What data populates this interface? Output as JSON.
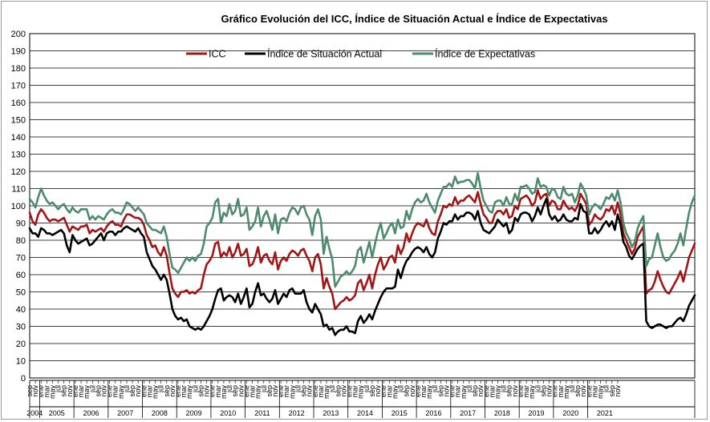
{
  "chart_data": {
    "type": "line",
    "title": "Gráfico Evolución del ICC, Índice de Situación Actual e Índice de Expectativas",
    "xlabel": "",
    "ylabel": "",
    "ylim": [
      0,
      200
    ],
    "ytick_step": 10,
    "grid": true,
    "legend_position": "top-center",
    "month_tick_labels": [
      "sep",
      "nov",
      "ene",
      "mar",
      "may",
      "jul",
      "sep",
      "nov"
    ],
    "month_tick_labels_end": [
      "sep",
      "nov",
      "ene",
      "mar"
    ],
    "year_labels": [
      "2004",
      "2005",
      "2006",
      "2007",
      "2008",
      "2009",
      "2010",
      "2011",
      "2012",
      "2013",
      "2014",
      "2015",
      "2016",
      "2017",
      "2018",
      "2019",
      "2020",
      "2021"
    ],
    "x_range": [
      "2004-09",
      "2021-04"
    ],
    "series": [
      {
        "name": "ICC",
        "color": "#a31515",
        "values": [
          96,
          91,
          89,
          95,
          98,
          96,
          93,
          91,
          92,
          92,
          91,
          92,
          93,
          89,
          85,
          88,
          87,
          86,
          88,
          88,
          89,
          84,
          86,
          85,
          86,
          87,
          85,
          88,
          90,
          91,
          89,
          89,
          88,
          92,
          95,
          95,
          94,
          93,
          93,
          92,
          89,
          83,
          80,
          76,
          77,
          73,
          71,
          76,
          71,
          61,
          52,
          49,
          47,
          50,
          50,
          51,
          49,
          50,
          49,
          51,
          52,
          60,
          66,
          68,
          71,
          78,
          79,
          70,
          73,
          71,
          76,
          70,
          73,
          78,
          71,
          72,
          75,
          65,
          66,
          70,
          76,
          67,
          71,
          72,
          68,
          66,
          73,
          63,
          68,
          70,
          68,
          72,
          74,
          73,
          71,
          74,
          75,
          71,
          68,
          62,
          70,
          72,
          66,
          52,
          58,
          53,
          49,
          40,
          42,
          44,
          45,
          47,
          45,
          46,
          48,
          55,
          57,
          51,
          55,
          60,
          52,
          60,
          66,
          70,
          63,
          66,
          70,
          71,
          67,
          77,
          72,
          76,
          84,
          79,
          84,
          88,
          90,
          89,
          88,
          92,
          87,
          84,
          83,
          91,
          95,
          100,
          99,
          101,
          100,
          105,
          101,
          103,
          103,
          105,
          106,
          104,
          102,
          108,
          101,
          95,
          93,
          90,
          90,
          95,
          97,
          97,
          95,
          98,
          93,
          94,
          100,
          98,
          104,
          105,
          106,
          104,
          100,
          102,
          109,
          104,
          106,
          107,
          100,
          103,
          102,
          98,
          98,
          103,
          100,
          98,
          99,
          97,
          100,
          107,
          104,
          101,
          89,
          91,
          95,
          93,
          92,
          94,
          98,
          97,
          100,
          95,
          102,
          95,
          84,
          80,
          76,
          72,
          75,
          82,
          85,
          88,
          49,
          51,
          52,
          56,
          62,
          57,
          53,
          50,
          49,
          52,
          55,
          58,
          62,
          56,
          63,
          70,
          74,
          78
        ]
      },
      {
        "name": "Índice de Situación Actual",
        "color": "#000000",
        "values": [
          87,
          84,
          84,
          82,
          87,
          86,
          84,
          84,
          83,
          84,
          85,
          86,
          84,
          77,
          73,
          83,
          80,
          78,
          79,
          80,
          81,
          77,
          78,
          80,
          82,
          84,
          80,
          84,
          85,
          85,
          83,
          85,
          85,
          87,
          88,
          87,
          86,
          85,
          87,
          84,
          82,
          73,
          69,
          65,
          63,
          60,
          57,
          60,
          57,
          49,
          40,
          36,
          34,
          35,
          33,
          34,
          30,
          29,
          28,
          29,
          28,
          30,
          33,
          36,
          40,
          46,
          51,
          52,
          45,
          47,
          48,
          47,
          44,
          49,
          43,
          47,
          52,
          41,
          43,
          50,
          55,
          48,
          49,
          46,
          44,
          46,
          51,
          43,
          46,
          49,
          47,
          51,
          52,
          49,
          49,
          49,
          51,
          44,
          40,
          38,
          43,
          40,
          37,
          30,
          31,
          28,
          29,
          25,
          27,
          28,
          28,
          30,
          27,
          27,
          26,
          33,
          36,
          32,
          34,
          37,
          34,
          39,
          43,
          47,
          50,
          52,
          52,
          52,
          53,
          63,
          58,
          64,
          68,
          70,
          73,
          75,
          76,
          75,
          73,
          76,
          72,
          70,
          73,
          81,
          85,
          90,
          89,
          91,
          91,
          95,
          92,
          94,
          94,
          96,
          96,
          95,
          92,
          97,
          90,
          86,
          85,
          84,
          86,
          88,
          92,
          90,
          88,
          90,
          84,
          86,
          93,
          91,
          95,
          96,
          96,
          95,
          91,
          94,
          99,
          95,
          100,
          104,
          95,
          92,
          94,
          91,
          92,
          95,
          92,
          91,
          91,
          93,
          92,
          101,
          97,
          96,
          84,
          84,
          87,
          84,
          86,
          89,
          91,
          88,
          91,
          86,
          95,
          89,
          79,
          76,
          71,
          69,
          72,
          75,
          77,
          78,
          33,
          30,
          29,
          30,
          31,
          31,
          30,
          29,
          30,
          30,
          32,
          34,
          35,
          33,
          37,
          42,
          45,
          48
        ]
      },
      {
        "name": "Índice de Expectativas",
        "color": "#4d8a6e",
        "values": [
          104,
          102,
          99,
          105,
          110,
          106,
          103,
          101,
          102,
          100,
          98,
          100,
          101,
          98,
          96,
          99,
          97,
          96,
          98,
          98,
          98,
          92,
          94,
          92,
          94,
          93,
          92,
          95,
          97,
          98,
          96,
          96,
          95,
          98,
          102,
          101,
          99,
          97,
          99,
          97,
          95,
          90,
          88,
          86,
          86,
          85,
          84,
          88,
          82,
          72,
          64,
          63,
          61,
          64,
          67,
          70,
          68,
          70,
          68,
          71,
          72,
          78,
          88,
          90,
          93,
          102,
          104,
          90,
          96,
          94,
          101,
          95,
          97,
          104,
          94,
          95,
          99,
          86,
          88,
          91,
          99,
          88,
          94,
          97,
          92,
          86,
          95,
          84,
          92,
          93,
          91,
          96,
          99,
          98,
          95,
          99,
          100,
          95,
          92,
          83,
          94,
          98,
          92,
          72,
          82,
          75,
          69,
          53,
          56,
          59,
          60,
          62,
          60,
          62,
          65,
          74,
          76,
          67,
          73,
          79,
          70,
          78,
          85,
          90,
          81,
          84,
          88,
          90,
          84,
          92,
          87,
          88,
          97,
          92,
          98,
          102,
          104,
          102,
          103,
          107,
          102,
          99,
          96,
          103,
          107,
          111,
          111,
          113,
          111,
          117,
          113,
          114,
          114,
          115,
          115,
          113,
          110,
          119,
          110,
          103,
          100,
          97,
          96,
          102,
          103,
          103,
          100,
          105,
          101,
          101,
          107,
          103,
          111,
          111,
          112,
          110,
          107,
          108,
          116,
          111,
          112,
          111,
          106,
          110,
          109,
          105,
          104,
          111,
          107,
          106,
          107,
          102,
          106,
          113,
          110,
          106,
          95,
          99,
          101,
          100,
          98,
          101,
          105,
          104,
          107,
          103,
          109,
          102,
          90,
          84,
          81,
          76,
          79,
          87,
          91,
          94,
          65,
          69,
          70,
          77,
          84,
          76,
          70,
          68,
          69,
          72,
          74,
          78,
          84,
          77,
          87,
          96,
          102,
          106
        ]
      }
    ]
  }
}
